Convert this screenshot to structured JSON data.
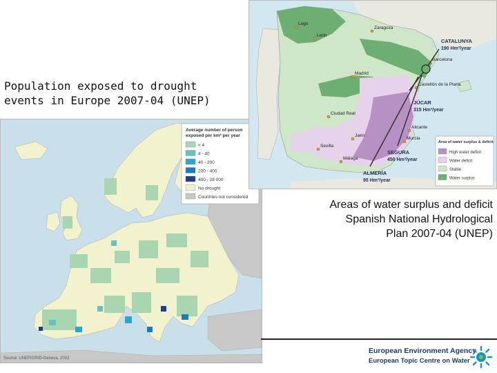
{
  "captions": {
    "europe_line1": "Population exposed to drought",
    "europe_line2": "events in Europe 2007-04 (UNEP)",
    "spain_line1": "Areas of water surplus and deficit",
    "spain_line2": "Spanish National Hydrological",
    "spain_line3": "Plan 2007-04 (UNEP)"
  },
  "europe_map": {
    "legend_title_line1": "Average number of person",
    "legend_title_line2": "exposed per km² per year",
    "legend_items": [
      {
        "label": "< 4",
        "color": "#a9d6b0"
      },
      {
        "label": "4 - 40",
        "color": "#66c2c0"
      },
      {
        "label": "40 - 200",
        "color": "#2aa6c9"
      },
      {
        "label": "200 - 400",
        "color": "#1d7bbf"
      },
      {
        "label": "400 - 28 000",
        "color": "#1b3f8f"
      },
      {
        "label": "No drought",
        "color": "#f2f2cf"
      },
      {
        "label": "Countries not considered",
        "color": "#c8c8c8"
      }
    ],
    "source": "Source: UNEP/GRID-Geneva, 2002"
  },
  "spain_map": {
    "cities": [
      "Lugo",
      "León",
      "Zaragoza",
      "Barcelona",
      "Madrid",
      "Castellón de la Plana",
      "Ciudad Real",
      "Alicante",
      "Murcia",
      "Jaén",
      "Sevilla",
      "Málaga"
    ],
    "transfers": {
      "catalunya_name": "CATALUNYA",
      "catalunya_volume": "190 Hm³/year",
      "jucar_name": "JÚCAR",
      "jucar_volume": "315 Hm³/year",
      "segura_name": "SEGURA",
      "segura_volume": "450 Hm³/year",
      "almeria_name": "ALMERÍA",
      "almeria_volume": "95 Hm³/year"
    },
    "legend_title": "Area of water surplus & deficit",
    "legend_items": [
      {
        "label": "High water deficit",
        "color": "#b891c4"
      },
      {
        "label": "Water deficit",
        "color": "#e6d2ea"
      },
      {
        "label": "Stable",
        "color": "#cfe6c9"
      },
      {
        "label": "Water surplus",
        "color": "#6dae72"
      }
    ]
  },
  "footer": {
    "org_name": "European Environment Agency",
    "org_sub": "European Topic Centre on Water"
  }
}
